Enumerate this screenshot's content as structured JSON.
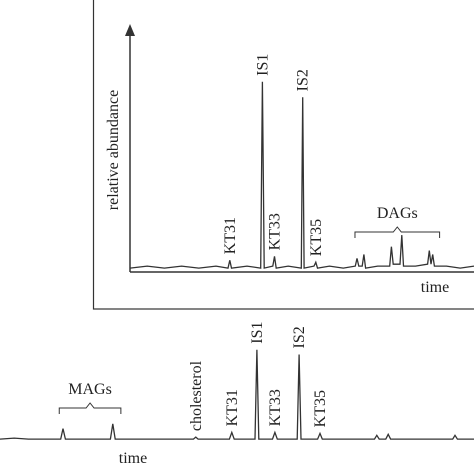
{
  "chart_data": [
    {
      "type": "line",
      "xlabel": "time",
      "ylabel": "relative abundance",
      "xlim": [
        0,
        100
      ],
      "ylim": [
        0,
        100
      ],
      "color": "#333333",
      "x": [
        0,
        5,
        10,
        15,
        20,
        25,
        28.5,
        29,
        29.5,
        34,
        38,
        38.5,
        39,
        41.5,
        42,
        42.5,
        46,
        49.8,
        50.2,
        50.6,
        53.5,
        54,
        54.5,
        58,
        62,
        65.5,
        66,
        66.5,
        67.5,
        68,
        68.5,
        72,
        75.5,
        76,
        76.5,
        78.5,
        79,
        79.5,
        83,
        86.5,
        87,
        87.5,
        88,
        88.5,
        92,
        96,
        100
      ],
      "values": [
        1,
        2,
        1,
        2,
        1,
        2,
        1,
        5,
        1,
        2,
        1,
        97,
        1,
        2,
        7,
        1,
        2,
        1,
        89,
        1,
        2,
        4,
        1,
        2,
        1,
        2,
        6,
        2,
        2,
        8,
        1,
        2,
        2,
        12,
        3,
        3,
        18,
        2,
        2,
        3,
        10,
        3,
        8,
        2,
        2,
        1,
        2
      ],
      "annotations": [
        {
          "text": "KT31",
          "x": 29
        },
        {
          "text": "IS1",
          "x": 38.5
        },
        {
          "text": "KT33",
          "x": 42
        },
        {
          "text": "IS2",
          "x": 50.2
        },
        {
          "text": "KT35",
          "x": 54
        }
      ],
      "group_labels": [
        {
          "text": "DAGs",
          "x": [
            65.4,
            90
          ]
        }
      ]
    },
    {
      "type": "line",
      "xlabel": "time",
      "xlim": [
        0,
        100
      ],
      "ylim": [
        0,
        100
      ],
      "color": "#333333",
      "x": [
        0,
        3,
        6,
        9,
        12.8,
        13.3,
        13.8,
        18,
        23.3,
        23.8,
        24.3,
        30,
        36,
        40.8,
        41.3,
        41.8,
        48.4,
        48.9,
        49.4,
        53.8,
        54.2,
        54.6,
        57.5,
        58,
        58.5,
        62.7,
        63.1,
        63.5,
        67,
        67.5,
        68,
        74,
        79,
        79.5,
        80,
        81.4,
        81.9,
        82.4,
        90,
        95.5,
        96,
        96.5,
        100
      ],
      "values": [
        1,
        2,
        1,
        1,
        1,
        12,
        1,
        1,
        1,
        17,
        1,
        1,
        1,
        1,
        3,
        1,
        1,
        8,
        1,
        1,
        95,
        1,
        1,
        8,
        1,
        1,
        90,
        1,
        1,
        7,
        1,
        1,
        1,
        5,
        1,
        1,
        6,
        1,
        1,
        1,
        5,
        1,
        1
      ],
      "annotations": [
        {
          "text": "cholesterol",
          "x": 41.3
        },
        {
          "text": "KT31",
          "x": 48.9
        },
        {
          "text": "IS1",
          "x": 54.2
        },
        {
          "text": "KT33",
          "x": 58
        },
        {
          "text": "IS2",
          "x": 63.1
        },
        {
          "text": "KT35",
          "x": 67.5
        }
      ],
      "group_labels": [
        {
          "text": "MAGs",
          "x": [
            12.5,
            25.5
          ]
        }
      ]
    }
  ]
}
